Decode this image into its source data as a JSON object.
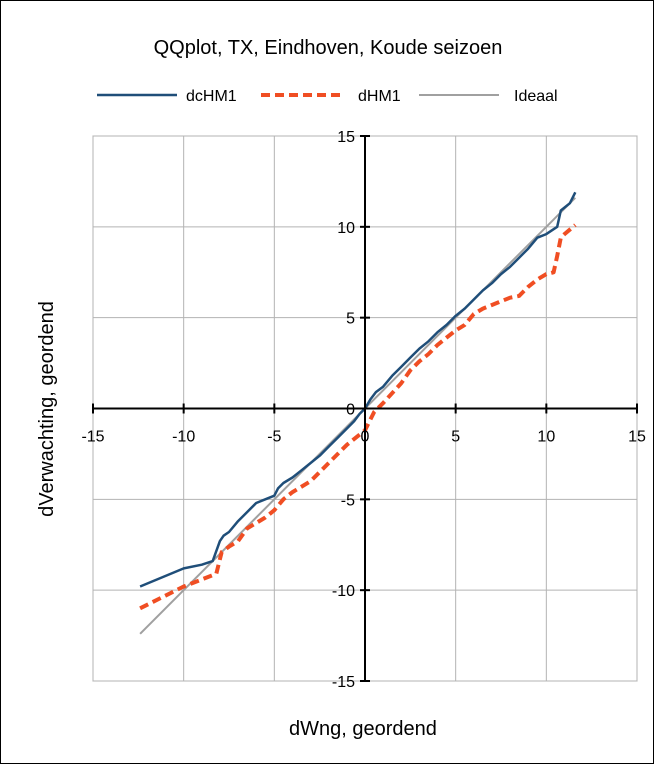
{
  "chart_data": {
    "type": "line",
    "title": "QQplot, TX, Eindhoven, Koude seizoen",
    "xlabel": "dWng, geordend",
    "ylabel": "dVerwachting, geordend",
    "xlim": [
      -15,
      15
    ],
    "ylim": [
      -15,
      15
    ],
    "xticks": [
      -15,
      -10,
      -5,
      0,
      5,
      10,
      15
    ],
    "yticks": [
      -15,
      -10,
      -5,
      0,
      5,
      10,
      15
    ],
    "xtick_labels": [
      "-15",
      "-10",
      "-5",
      "0",
      "5",
      "10",
      "15"
    ],
    "ytick_labels": [
      "-15",
      "-10",
      "-5",
      "0",
      "5",
      "10",
      "15"
    ],
    "grid": true,
    "legend_position": "top",
    "series": [
      {
        "name": "dcHM1",
        "color": "#1f4e79",
        "style": "solid",
        "x": [
          -12.4,
          -10.0,
          -9.0,
          -8.4,
          -8.0,
          -7.8,
          -7.5,
          -7.0,
          -6.5,
          -6.0,
          -5.5,
          -5.0,
          -4.8,
          -4.5,
          -4.0,
          -3.5,
          -3.0,
          -2.5,
          -2.0,
          -1.5,
          -1.0,
          -0.6,
          -0.3,
          0.0,
          0.3,
          0.6,
          1.0,
          1.5,
          2.0,
          2.5,
          3.0,
          3.5,
          4.0,
          4.5,
          5.0,
          5.5,
          6.0,
          6.5,
          7.0,
          7.5,
          8.0,
          8.5,
          9.0,
          9.5,
          10.0,
          10.6,
          10.8,
          11.3,
          11.6
        ],
        "y": [
          -9.8,
          -8.8,
          -8.6,
          -8.4,
          -7.3,
          -7.0,
          -6.8,
          -6.2,
          -5.7,
          -5.2,
          -5.0,
          -4.8,
          -4.4,
          -4.1,
          -3.8,
          -3.4,
          -3.0,
          -2.6,
          -2.1,
          -1.6,
          -1.1,
          -0.7,
          -0.3,
          0.0,
          0.5,
          0.9,
          1.2,
          1.8,
          2.3,
          2.8,
          3.3,
          3.7,
          4.2,
          4.6,
          5.1,
          5.5,
          6.0,
          6.5,
          6.9,
          7.4,
          7.8,
          8.3,
          8.8,
          9.4,
          9.6,
          10.0,
          10.9,
          11.3,
          11.9
        ]
      },
      {
        "name": "dHM1",
        "color": "#f04e23",
        "style": "dashed",
        "x": [
          -12.4,
          -10.0,
          -8.2,
          -7.9,
          -7.5,
          -7.0,
          -6.5,
          -6.0,
          -5.5,
          -5.0,
          -4.5,
          -4.0,
          -3.0,
          -2.0,
          -1.0,
          0.0,
          0.5,
          1.0,
          2.0,
          2.5,
          3.0,
          3.5,
          4.0,
          4.5,
          5.0,
          5.5,
          6.0,
          6.5,
          7.0,
          7.5,
          8.0,
          8.5,
          9.0,
          9.5,
          10.0,
          10.4,
          10.6,
          10.8,
          11.0,
          11.6
        ],
        "y": [
          -11.0,
          -9.8,
          -9.1,
          -7.9,
          -7.6,
          -7.3,
          -6.6,
          -6.3,
          -6.0,
          -5.6,
          -5.0,
          -4.6,
          -4.0,
          -3.0,
          -2.0,
          -1.2,
          -0.2,
          0.3,
          1.4,
          2.1,
          2.6,
          3.0,
          3.5,
          3.9,
          4.3,
          4.6,
          5.2,
          5.5,
          5.7,
          5.9,
          6.1,
          6.2,
          6.7,
          7.1,
          7.4,
          7.5,
          8.4,
          9.4,
          9.6,
          10.1
        ]
      },
      {
        "name": "Ideaal",
        "color": "#a0a0a0",
        "style": "solid",
        "x": [
          -12.4,
          11.6
        ],
        "y": [
          -12.4,
          11.6
        ]
      }
    ]
  }
}
